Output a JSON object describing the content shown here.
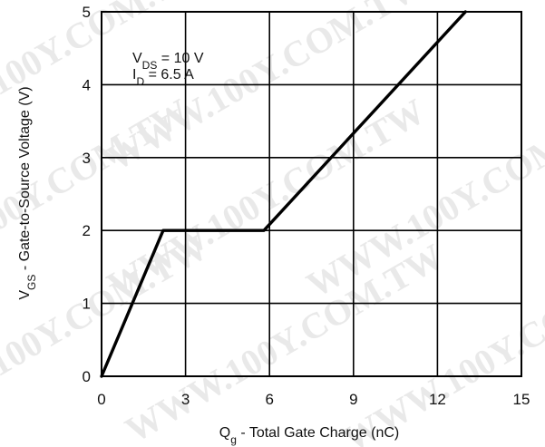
{
  "chart_data": {
    "type": "line",
    "title": "",
    "xlabel": {
      "main": "Q",
      "sub": "g",
      "rest": " - Total Gate Charge (nC)"
    },
    "ylabel": {
      "main": "V",
      "sub": "GS",
      "rest": " - Gate-to-Source Voltage (V)"
    },
    "xlim": [
      0,
      15
    ],
    "ylim": [
      0,
      5
    ],
    "xticks": [
      0,
      3,
      6,
      9,
      12,
      15
    ],
    "yticks": [
      0,
      1,
      2,
      3,
      4,
      5
    ],
    "grid": true,
    "annotations": [
      {
        "main": "V",
        "sub": "DS",
        "rest": " = 10 V"
      },
      {
        "main": "I",
        "sub": "D",
        "rest": " = 6.5 A"
      }
    ],
    "series": [
      {
        "x": [
          0,
          2.2,
          5.8,
          13.0
        ],
        "y": [
          0,
          2.0,
          2.0,
          5.0
        ]
      }
    ],
    "watermark": "WWW.100Y.COM.TW",
    "colors": {
      "line": "#000000",
      "grid": "#000000",
      "watermark": "#e9e9e9"
    }
  }
}
